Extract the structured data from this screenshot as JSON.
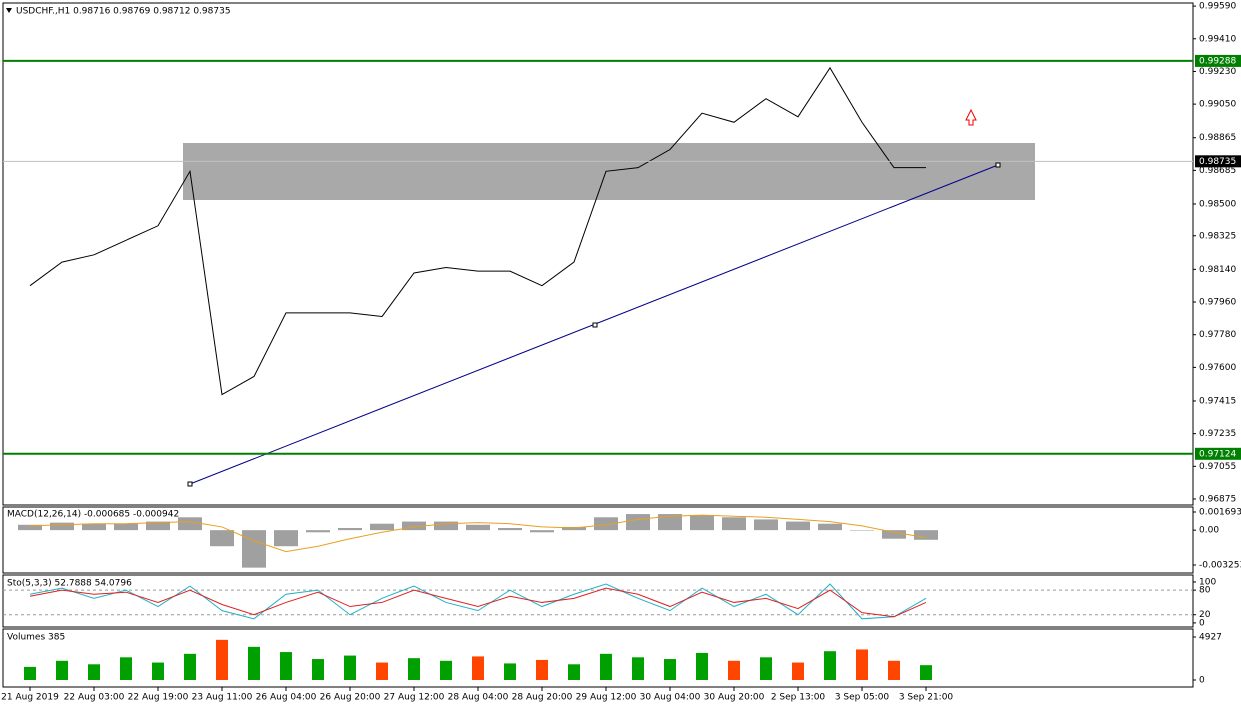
{
  "chart_data": [
    {
      "type": "line",
      "title": "USDCHF.,H1 0.98716 0.98769 0.98712 0.98735",
      "categories": [
        "21 Aug 2019",
        null,
        "22 Aug 03:00",
        null,
        "22 Aug 19:00",
        null,
        "23 Aug 11:00",
        null,
        "26 Aug 04:00",
        null,
        "26 Aug 20:00",
        null,
        "27 Aug 12:00",
        null,
        "28 Aug 04:00",
        null,
        "28 Aug 20:00",
        null,
        "29 Aug 12:00",
        null,
        "30 Aug 04:00",
        null,
        "30 Aug 20:00",
        null,
        "2 Sep 13:00",
        null,
        "3 Sep 05:00",
        null,
        "3 Sep 21:00"
      ],
      "values": [
        0.9805,
        0.9818,
        0.9822,
        0.983,
        0.9838,
        0.9868,
        0.9745,
        0.9755,
        0.979,
        0.979,
        0.979,
        0.9788,
        0.9812,
        0.9815,
        0.9813,
        0.9813,
        0.9805,
        0.9818,
        0.9868,
        0.987,
        0.988,
        0.99,
        0.9895,
        0.9908,
        0.9898,
        0.9925,
        0.9895,
        0.987,
        0.987
      ],
      "color": "#000000",
      "ylim": [
        0.96842,
        0.99607
      ],
      "yticks": [
        {
          "value": 0.9959,
          "label": "0.99590"
        },
        {
          "value": 0.9941,
          "label": "0.99410"
        },
        {
          "value": 0.9923,
          "label": "0.99230"
        },
        {
          "value": 0.9905,
          "label": "0.99050"
        },
        {
          "value": 0.98865,
          "label": "0.98865"
        },
        {
          "value": 0.98685,
          "label": "0.98685"
        },
        {
          "value": 0.985,
          "label": "0.98500"
        },
        {
          "value": 0.98325,
          "label": "0.98325"
        },
        {
          "value": 0.9814,
          "label": "0.98140"
        },
        {
          "value": 0.9796,
          "label": "0.97960"
        },
        {
          "value": 0.9778,
          "label": "0.97780"
        },
        {
          "value": 0.976,
          "label": "0.97600"
        },
        {
          "value": 0.97415,
          "label": "0.97415"
        },
        {
          "value": 0.97235,
          "label": "0.97235"
        },
        {
          "value": 0.97055,
          "label": "0.97055"
        },
        {
          "value": 0.96875,
          "label": "0.96875"
        }
      ],
      "levels": [
        {
          "value": 0.99288,
          "label": "0.99288",
          "color": "#008000"
        },
        {
          "value": 0.97124,
          "label": "0.97124",
          "color": "#008000"
        }
      ],
      "last_price": {
        "value": 0.98735,
        "label": "0.98735"
      }
    },
    {
      "type": "macd",
      "title": "MACD(12,26,14) -0.000685 -0.000942",
      "values": [
        0.0005,
        0.0007,
        0.0006,
        0.0006,
        0.0008,
        0.0012,
        -0.0015,
        -0.0035,
        -0.0015,
        -0.0002,
        0.0002,
        0.0006,
        0.0008,
        0.0008,
        0.0005,
        0.0002,
        -0.0002,
        0.0003,
        0.0012,
        0.0015,
        0.0015,
        0.0014,
        0.0012,
        0.001,
        0.0008,
        0.0006,
        0,
        -0.0008,
        -0.0009
      ],
      "signal": [
        0.0004,
        0.0005,
        0.0006,
        0.0006,
        0.0007,
        0.0008,
        0.0003,
        -0.001,
        -0.002,
        -0.0015,
        -0.0008,
        -0.0002,
        0.0003,
        0.0006,
        0.0007,
        0.0006,
        0.0003,
        0.0002,
        0.0005,
        0.001,
        0.0013,
        0.0014,
        0.0013,
        0.0012,
        0.001,
        0.0008,
        0.0004,
        -0.0002,
        -0.0007
      ],
      "color": "#a0a0a0",
      "signal_color": "#e8a020",
      "ylim": [
        -0.004,
        0.00216
      ],
      "yticks": [
        0.001693,
        {
          "value": 0,
          "label": "0.00"
        },
        -0.003253
      ]
    },
    {
      "type": "stochastic",
      "title": "Sto(5,3,3) 52.7888 54.0796",
      "series": [
        {
          "color": "#20b0c8",
          "values": [
            70,
            85,
            60,
            80,
            40,
            90,
            30,
            10,
            70,
            80,
            20,
            60,
            90,
            50,
            30,
            80,
            40,
            70,
            95,
            60,
            30,
            85,
            40,
            70,
            20,
            95,
            10,
            15,
            60
          ]
        },
        {
          "color": "#e02020",
          "values": [
            65,
            80,
            70,
            75,
            50,
            80,
            45,
            20,
            50,
            75,
            40,
            50,
            80,
            60,
            40,
            65,
            50,
            60,
            85,
            70,
            40,
            75,
            50,
            60,
            35,
            80,
            25,
            15,
            50
          ]
        }
      ],
      "ylim": [
        -10,
        117
      ],
      "yticks": [
        100,
        80,
        20,
        0
      ]
    },
    {
      "type": "bar",
      "title": "Volumes 385",
      "values": [
        1500,
        2200,
        1800,
        2600,
        2000,
        3000,
        4600,
        3800,
        3200,
        2400,
        2800,
        2000,
        2500,
        2200,
        2700,
        1900,
        2300,
        1800,
        3000,
        2600,
        2400,
        3100,
        2200,
        2600,
        2000,
        3300,
        3500,
        2200,
        1700
      ],
      "up_color": "#00a000",
      "down_color": "#ff4500",
      "ylim": [
        -802,
        5844
      ],
      "yticks": [
        4927,
        0
      ]
    }
  ]
}
